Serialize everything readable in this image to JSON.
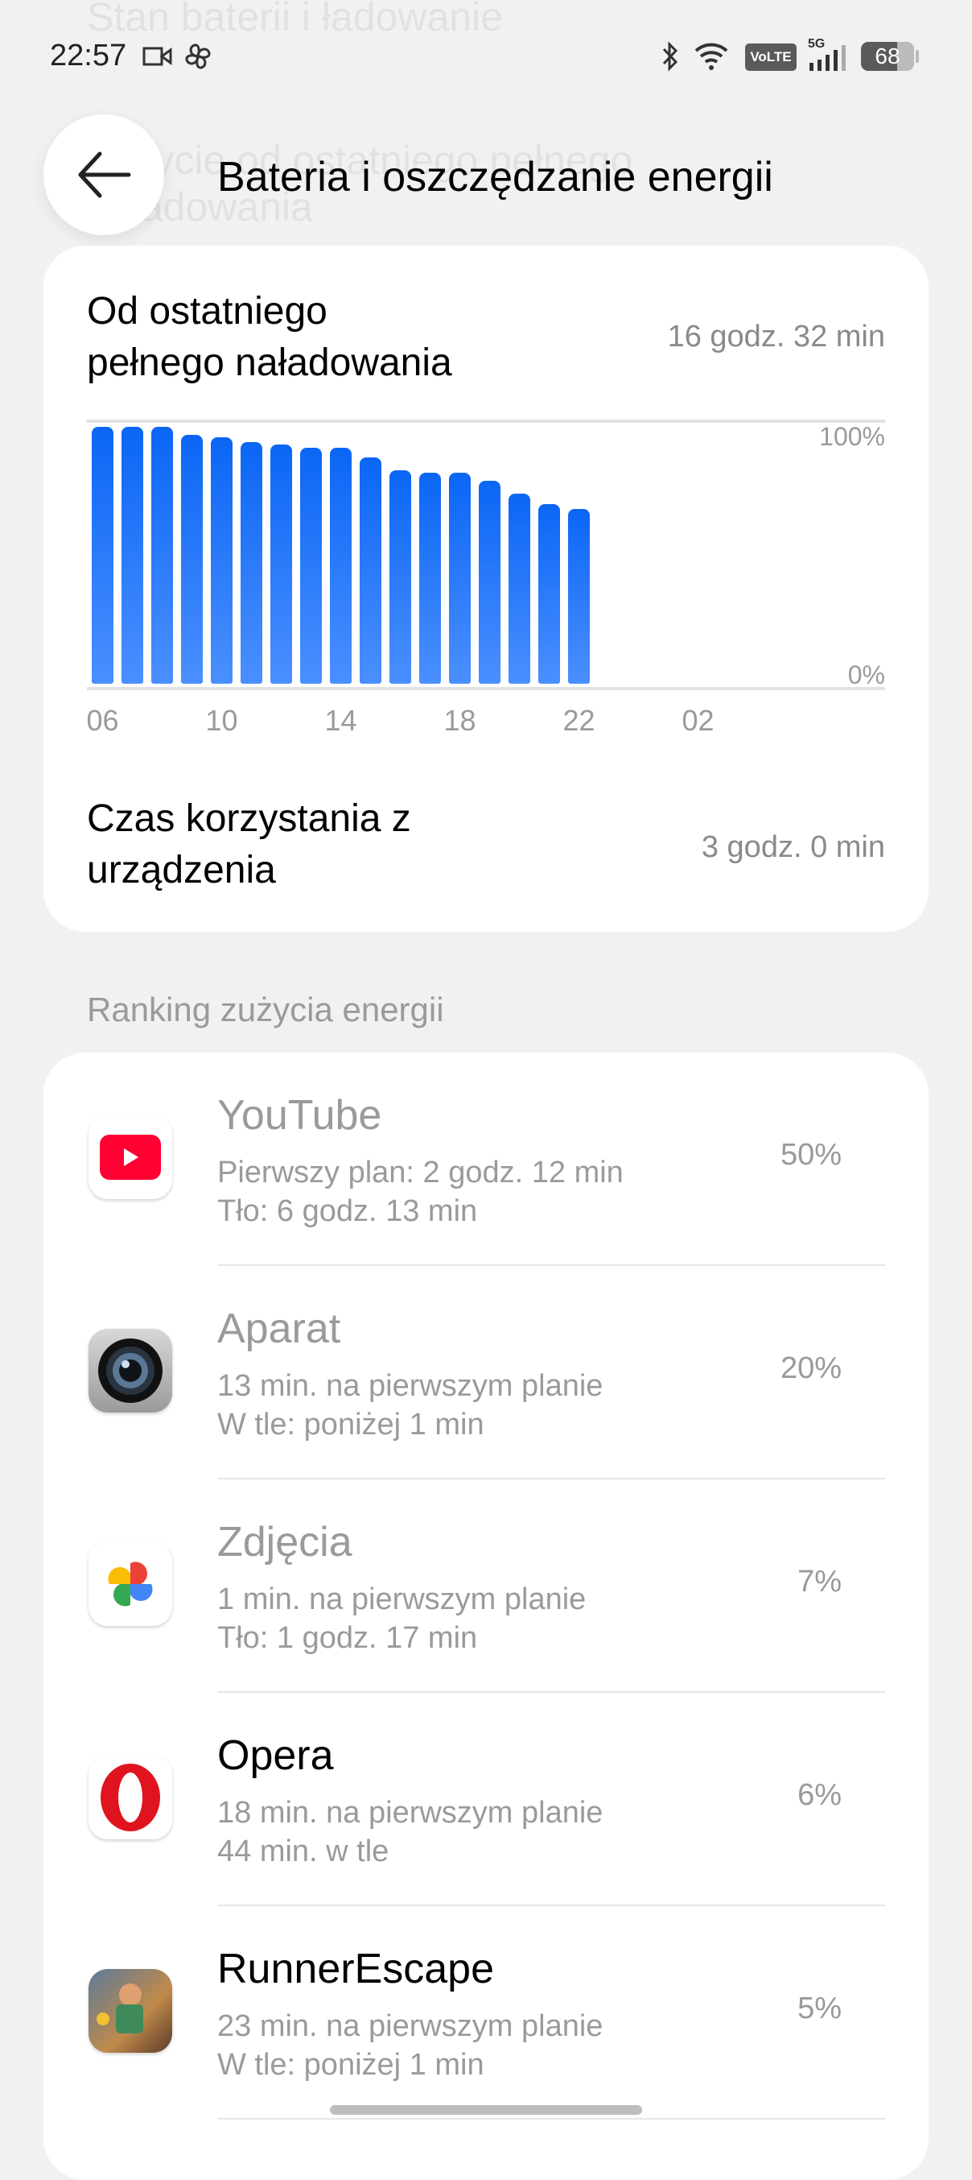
{
  "background_headers": {
    "top": "Stan baterii i ładowanie",
    "behind_title": "Zużycie od ostatniego pełnego naładowania"
  },
  "status_bar": {
    "time": "22:57",
    "battery": "68",
    "network": "5G",
    "volte": "VoLTE",
    "icons": [
      "video-camera-icon",
      "pinwheel-icon",
      "bluetooth-icon",
      "wifi-icon",
      "volte-icon",
      "signal-icon",
      "battery-icon"
    ]
  },
  "header": {
    "title": "Bateria i oszczędzanie energii",
    "back_icon": "arrow-left-icon"
  },
  "summary": {
    "since_charge_label": "Od ostatniego pełnego naładowania",
    "since_charge_line1": "Od ostatniego",
    "since_charge_line2": "pełnego naładowania",
    "since_charge_value": "16 godz. 32 min",
    "screen_time_line1": "Czas korzystania z",
    "screen_time_line2": "urządzenia",
    "screen_time_value": "3 godz. 0 min"
  },
  "chart_data": {
    "type": "bar",
    "categories": [
      "06",
      "07",
      "08",
      "09",
      "10",
      "11",
      "12",
      "13",
      "14",
      "15",
      "16",
      "17",
      "18",
      "19",
      "20",
      "21",
      "22"
    ],
    "values": [
      100,
      100,
      100,
      97,
      96,
      94,
      93,
      92,
      92,
      88,
      83,
      82,
      82,
      79,
      74,
      70,
      68
    ],
    "x_tick_labels": [
      "06",
      "10",
      "14",
      "18",
      "22",
      "02"
    ],
    "y_tick_labels": [
      "100%",
      "0%"
    ],
    "ylim": [
      0,
      100
    ],
    "x_range_hours": 24,
    "bar_color": "#0b66f5",
    "grid": "top and bottom lines"
  },
  "ranking": {
    "title": "Ranking zużycia energii",
    "items": [
      {
        "name": "YouTube",
        "line1": "Pierwszy plan: 2 godz. 12 min",
        "line2": "Tło: 6 godz. 13 min",
        "percent": "50%",
        "icon": "youtube-icon",
        "dimmed": true
      },
      {
        "name": "Aparat",
        "line1": "13 min. na pierwszym planie",
        "line2": "W tle: poniżej 1 min",
        "percent": "20%",
        "icon": "camera-icon",
        "dimmed": true
      },
      {
        "name": "Zdjęcia",
        "line1": "1 min. na pierwszym planie",
        "line2": "Tło: 1 godz. 17 min",
        "percent": "7%",
        "icon": "photos-pinwheel-icon",
        "dimmed": true
      },
      {
        "name": "Opera",
        "line1": "18 min. na pierwszym planie",
        "line2": "44 min. w tle",
        "percent": "6%",
        "icon": "opera-icon",
        "dimmed": false
      },
      {
        "name": "RunnerEscape",
        "line1": "23 min. na pierwszym planie",
        "line2": "W tle: poniżej 1 min",
        "percent": "5%",
        "icon": "runner-game-icon",
        "dimmed": false
      }
    ]
  }
}
